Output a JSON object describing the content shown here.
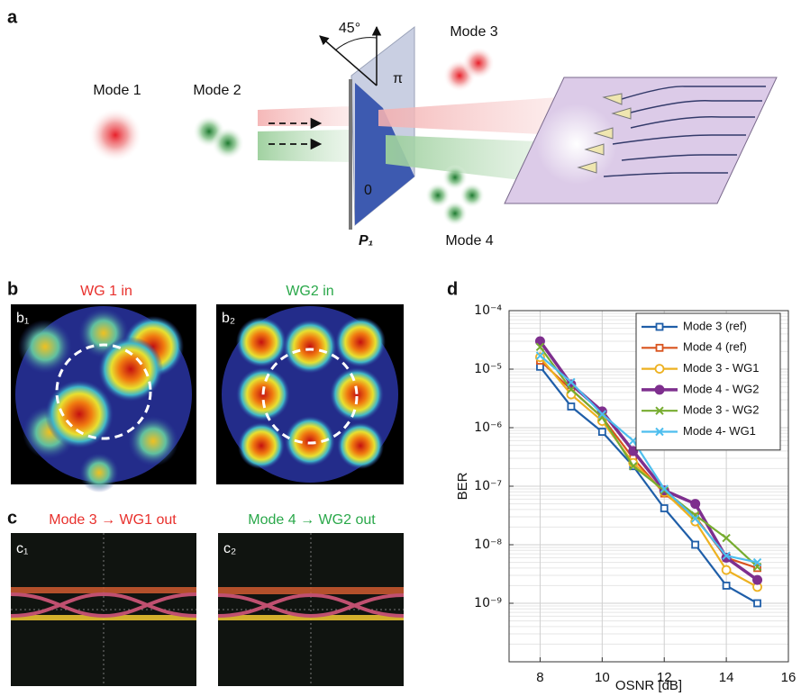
{
  "panels": {
    "a": {
      "label": "a",
      "mode1": "Mode 1",
      "mode2": "Mode 2",
      "angle": "45°",
      "phase_pi": "π",
      "phase_zero": "0",
      "plate": "P₁",
      "mode3": "Mode 3",
      "mode4": "Mode 4"
    },
    "b": {
      "label": "b",
      "title1": "WG 1 in",
      "title2": "WG2 in",
      "sub1": "b₁",
      "sub2": "b₂"
    },
    "c": {
      "label": "c",
      "title1": "Mode 3 → WG1 out",
      "title2": "Mode 4 → WG2 out",
      "sub1": "c₁",
      "sub2": "c₂"
    },
    "d": {
      "label": "d"
    }
  },
  "chart_data": {
    "type": "line",
    "xlabel": "OSNR [dB]",
    "ylabel": "BER",
    "x": [
      8,
      9,
      10,
      11,
      12,
      13,
      14,
      15
    ],
    "xlim": [
      7,
      16
    ],
    "xticks": [
      8,
      10,
      12,
      14,
      16
    ],
    "ylim": [
      1e-10,
      0.0001
    ],
    "log_y": true,
    "grid": true,
    "minor_grid": true,
    "legend": "upper right",
    "yticks": [
      {
        "value": 0.0001,
        "label": "10⁻⁴"
      },
      {
        "value": 1e-05,
        "label": "10⁻⁵"
      },
      {
        "value": 1e-06,
        "label": "10⁻⁶"
      },
      {
        "value": 1e-07,
        "label": "10⁻⁷"
      },
      {
        "value": 1e-08,
        "label": "10⁻⁸"
      },
      {
        "value": 1e-09,
        "label": "10⁻⁹"
      }
    ],
    "series": [
      {
        "name": "Mode 3 (ref)",
        "color": "#1f5ea8",
        "marker": "square",
        "width": 2.2,
        "values": [
          1.1e-05,
          2.3e-06,
          8.5e-07,
          2.2e-07,
          4.2e-08,
          1e-08,
          2e-09,
          1e-09
        ]
      },
      {
        "name": "Mode 4 (ref)",
        "color": "#d9541e",
        "marker": "square",
        "width": 2.2,
        "values": [
          1.4e-05,
          4.5e-06,
          1.5e-06,
          3e-07,
          7.5e-08,
          3e-08,
          6e-09,
          4e-09
        ]
      },
      {
        "name": "Mode 3 - WG1",
        "color": "#edb120",
        "marker": "circle",
        "width": 2.2,
        "values": [
          1.6e-05,
          3.7e-06,
          1.3e-06,
          2.5e-07,
          8e-08,
          2.5e-08,
          3.7e-09,
          1.9e-09
        ]
      },
      {
        "name": "Mode 4 - WG2",
        "color": "#7e2f8e",
        "marker": "dot",
        "width": 3.5,
        "values": [
          3e-05,
          5.5e-06,
          1.9e-06,
          4e-07,
          8.5e-08,
          5e-08,
          6e-09,
          2.5e-09
        ]
      },
      {
        "name": "Mode 3 - WG2",
        "color": "#77ac30",
        "marker": "x",
        "width": 2.2,
        "values": [
          2.4e-05,
          4.5e-06,
          1.5e-06,
          2.2e-07,
          8.5e-08,
          3.2e-08,
          1.3e-08,
          4.2e-09
        ]
      },
      {
        "name": "Mode 4- WG1",
        "color": "#4dbeee",
        "marker": "x",
        "width": 2.2,
        "values": [
          1.7e-05,
          6e-06,
          1.7e-06,
          6e-07,
          9e-08,
          2.8e-08,
          6.5e-09,
          5e-09
        ]
      }
    ]
  }
}
